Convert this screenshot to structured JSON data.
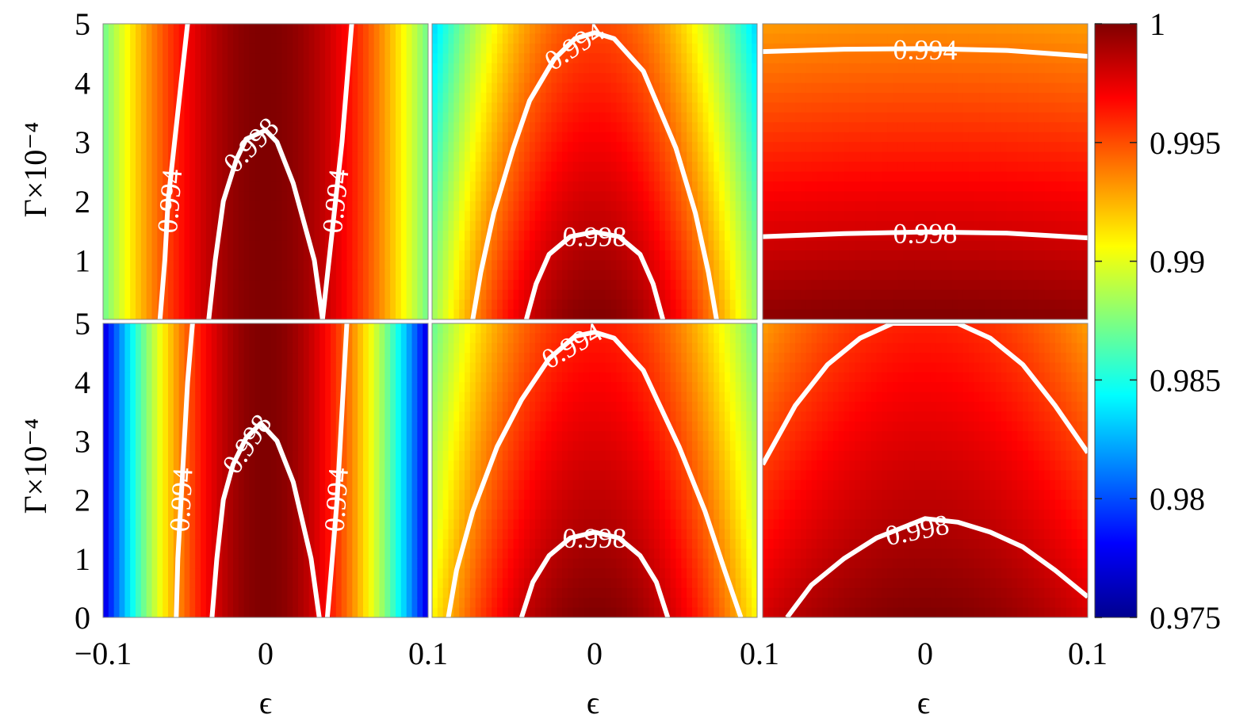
{
  "chart_data": {
    "type": "heatmap",
    "layout": "2x3 grid of filled contour panels sharing one colorbar",
    "xlabel": "ϵ",
    "ylabel": "Γ×10⁻⁴",
    "xlim": [
      -0.1,
      0.1
    ],
    "ylim": [
      0,
      5
    ],
    "x_tick_labels": [
      "−0.1",
      "0",
      "0.1",
      "0",
      "0.1",
      "0",
      "0.1"
    ],
    "y_tick_labels_top_row": [
      "5",
      "4",
      "3",
      "2",
      "1"
    ],
    "y_tick_labels_bottom_row": [
      "5",
      "4",
      "3",
      "2",
      "1",
      "0"
    ],
    "colorbar": {
      "range": [
        0.975,
        1
      ],
      "tick_labels": [
        "1",
        "0.995",
        "0.99",
        "0.985",
        "0.98",
        "0.975"
      ],
      "ticks": [
        1,
        0.995,
        0.99,
        0.985,
        0.98,
        0.975
      ],
      "colormap": "jet"
    },
    "contour_levels": [
      0.994,
      0.998
    ],
    "contour_labels": [
      "0.994",
      "0.998"
    ],
    "panels": [
      {
        "name": "top-left",
        "shape": "vertical-band",
        "min_value": 0.987,
        "center_value": 1.0,
        "contours": [
          {
            "level": 0.994,
            "label": "0.994",
            "points": [
              [
                -0.065,
                0.0
              ],
              [
                -0.062,
                1.0
              ],
              [
                -0.06,
                2.0
              ],
              [
                -0.056,
                3.0
              ],
              [
                -0.052,
                4.0
              ],
              [
                -0.048,
                5.0
              ]
            ]
          },
          {
            "level": 0.994,
            "label": "0.994",
            "points": [
              [
                0.035,
                0.0
              ],
              [
                0.039,
                1.0
              ],
              [
                0.043,
                2.0
              ],
              [
                0.047,
                3.0
              ],
              [
                0.05,
                4.0
              ],
              [
                0.053,
                5.0
              ]
            ]
          },
          {
            "level": 0.998,
            "label": "0.998",
            "points": [
              [
                -0.035,
                0.0
              ],
              [
                -0.031,
                1.0
              ],
              [
                -0.026,
                2.0
              ],
              [
                -0.018,
                2.7
              ],
              [
                -0.012,
                3.05
              ],
              [
                0.0,
                3.2
              ],
              [
                0.007,
                3.0
              ],
              [
                0.017,
                2.3
              ],
              [
                0.03,
                1.0
              ],
              [
                0.035,
                0.0
              ]
            ]
          }
        ]
      },
      {
        "name": "top-middle",
        "shape": "parabola",
        "min_value": 0.986,
        "center_value": 1.0,
        "contours": [
          {
            "level": 0.994,
            "label": "0.994",
            "points": [
              [
                -0.075,
                0.0
              ],
              [
                -0.07,
                0.8
              ],
              [
                -0.062,
                1.8
              ],
              [
                -0.05,
                2.9
              ],
              [
                -0.04,
                3.7
              ],
              [
                -0.025,
                4.4
              ],
              [
                -0.012,
                4.75
              ],
              [
                0.0,
                4.85
              ],
              [
                0.012,
                4.75
              ],
              [
                0.03,
                4.2
              ],
              [
                0.05,
                2.9
              ],
              [
                0.062,
                1.8
              ],
              [
                0.07,
                0.8
              ],
              [
                0.075,
                0.0
              ]
            ]
          },
          {
            "level": 0.998,
            "label": "0.998",
            "points": [
              [
                -0.042,
                0.0
              ],
              [
                -0.036,
                0.6
              ],
              [
                -0.028,
                1.1
              ],
              [
                -0.015,
                1.4
              ],
              [
                0.0,
                1.48
              ],
              [
                0.015,
                1.4
              ],
              [
                0.028,
                1.1
              ],
              [
                0.036,
                0.6
              ],
              [
                0.042,
                0.0
              ]
            ]
          }
        ]
      },
      {
        "name": "top-right",
        "shape": "horizontal-band",
        "min_value": 0.993,
        "center_value": 1.0,
        "contours": [
          {
            "level": 0.994,
            "label": "0.994",
            "points": [
              [
                -0.1,
                4.53
              ],
              [
                -0.05,
                4.57
              ],
              [
                0.0,
                4.58
              ],
              [
                0.05,
                4.55
              ],
              [
                0.1,
                4.45
              ]
            ]
          },
          {
            "level": 0.998,
            "label": "0.998",
            "points": [
              [
                -0.1,
                1.4
              ],
              [
                -0.05,
                1.45
              ],
              [
                0.0,
                1.48
              ],
              [
                0.05,
                1.46
              ],
              [
                0.1,
                1.38
              ]
            ]
          }
        ]
      },
      {
        "name": "bottom-left",
        "shape": "vertical-band",
        "min_value": 0.977,
        "center_value": 1.0,
        "contours": [
          {
            "level": 0.994,
            "label": "0.994",
            "points": [
              [
                -0.055,
                0.0
              ],
              [
                -0.054,
                1.0
              ],
              [
                -0.052,
                2.0
              ],
              [
                -0.05,
                3.0
              ],
              [
                -0.048,
                4.0
              ],
              [
                -0.045,
                5.0
              ]
            ]
          },
          {
            "level": 0.994,
            "label": "0.994",
            "points": [
              [
                0.038,
                0.0
              ],
              [
                0.041,
                1.0
              ],
              [
                0.044,
                2.0
              ],
              [
                0.046,
                3.0
              ],
              [
                0.048,
                4.0
              ],
              [
                0.05,
                5.0
              ]
            ]
          },
          {
            "level": 0.998,
            "label": "0.998",
            "points": [
              [
                -0.033,
                0.0
              ],
              [
                -0.03,
                1.0
              ],
              [
                -0.026,
                2.0
              ],
              [
                -0.02,
                2.6
              ],
              [
                -0.012,
                3.05
              ],
              [
                -0.003,
                3.3
              ],
              [
                0.007,
                3.0
              ],
              [
                0.017,
                2.3
              ],
              [
                0.028,
                1.0
              ],
              [
                0.033,
                0.0
              ]
            ]
          }
        ]
      },
      {
        "name": "bottom-middle",
        "shape": "parabola",
        "min_value": 0.989,
        "center_value": 1.0,
        "contours": [
          {
            "level": 0.994,
            "label": "0.994",
            "points": [
              [
                -0.09,
                0.0
              ],
              [
                -0.085,
                0.8
              ],
              [
                -0.075,
                1.8
              ],
              [
                -0.06,
                2.9
              ],
              [
                -0.045,
                3.7
              ],
              [
                -0.028,
                4.4
              ],
              [
                -0.012,
                4.78
              ],
              [
                0.0,
                4.85
              ],
              [
                0.012,
                4.75
              ],
              [
                0.03,
                4.2
              ],
              [
                0.052,
                2.9
              ],
              [
                0.068,
                1.8
              ],
              [
                0.08,
                0.8
              ],
              [
                0.09,
                0.0
              ]
            ]
          },
          {
            "level": 0.998,
            "label": "0.998",
            "points": [
              [
                -0.045,
                0.0
              ],
              [
                -0.038,
                0.6
              ],
              [
                -0.028,
                1.05
              ],
              [
                -0.015,
                1.35
              ],
              [
                0.0,
                1.45
              ],
              [
                0.015,
                1.35
              ],
              [
                0.028,
                1.05
              ],
              [
                0.038,
                0.6
              ],
              [
                0.045,
                0.0
              ]
            ]
          }
        ]
      },
      {
        "name": "bottom-right",
        "shape": "wide-parabola",
        "min_value": 0.993,
        "center_value": 1.0,
        "contours": [
          {
            "level": 0.994,
            "label": "",
            "points": [
              [
                -0.1,
                2.6
              ],
              [
                -0.08,
                3.6
              ],
              [
                -0.06,
                4.3
              ],
              [
                -0.04,
                4.75
              ],
              [
                -0.02,
                5.0
              ],
              [
                0.02,
                5.0
              ],
              [
                0.04,
                4.75
              ],
              [
                0.06,
                4.3
              ],
              [
                0.08,
                3.6
              ],
              [
                0.1,
                2.8
              ]
            ]
          },
          {
            "level": 0.998,
            "label": "0.998",
            "points": [
              [
                -0.085,
                0.0
              ],
              [
                -0.07,
                0.55
              ],
              [
                -0.05,
                1.0
              ],
              [
                -0.03,
                1.35
              ],
              [
                0.0,
                1.68
              ],
              [
                0.02,
                1.62
              ],
              [
                0.04,
                1.45
              ],
              [
                0.06,
                1.2
              ],
              [
                0.08,
                0.8
              ],
              [
                0.1,
                0.35
              ]
            ]
          }
        ]
      }
    ]
  }
}
